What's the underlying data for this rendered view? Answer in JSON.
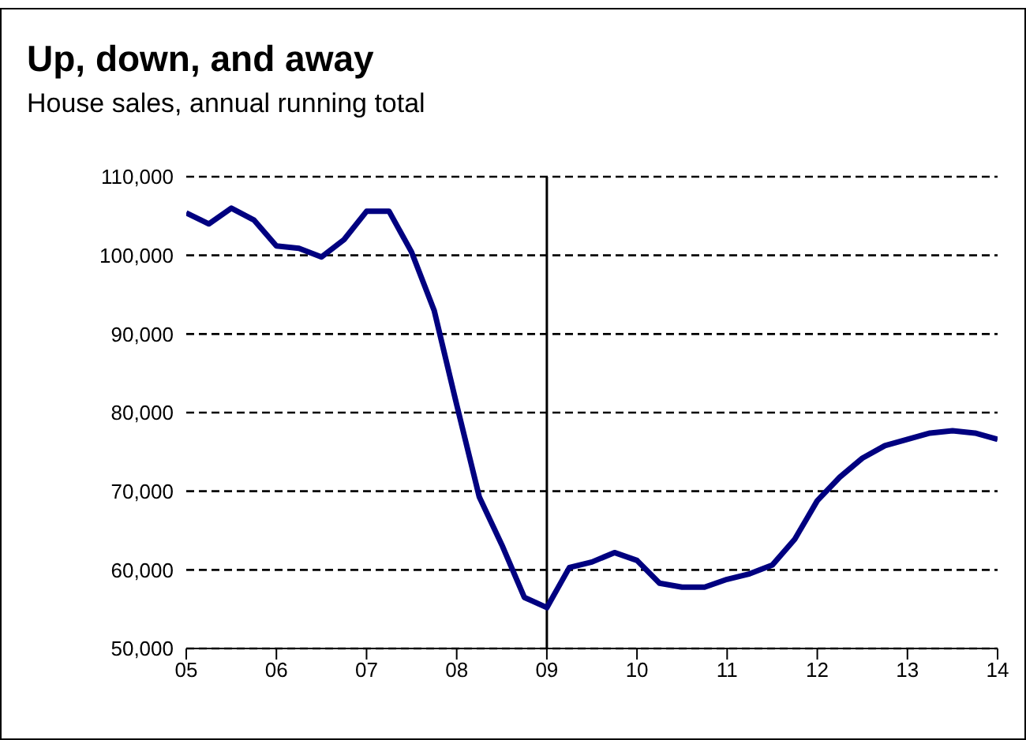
{
  "chart_data": {
    "type": "line",
    "title": "Up, down, and away",
    "subtitle": "House sales, annual running total",
    "x": [
      5,
      5.25,
      5.5,
      5.75,
      6,
      6.25,
      6.5,
      6.75,
      7,
      7.25,
      7.5,
      7.75,
      8,
      8.25,
      8.5,
      8.75,
      9,
      9.25,
      9.5,
      9.75,
      10,
      10.25,
      10.5,
      10.75,
      11,
      11.25,
      11.5,
      11.75,
      12,
      12.25,
      12.5,
      12.75,
      13,
      13.25,
      13.5,
      13.75,
      14
    ],
    "series": [
      {
        "color": "#000080",
        "values": [
          105400,
          104000,
          106000,
          104500,
          101200,
          100900,
          99800,
          102000,
          105600,
          105600,
          100400,
          93000,
          81000,
          69300,
          63200,
          56500,
          55200,
          60300,
          61000,
          62200,
          61200,
          58300,
          57800,
          57800,
          58800,
          59500,
          60600,
          63900,
          68800,
          71800,
          74200,
          75800,
          76600,
          77400,
          77700,
          77400,
          76600
        ]
      }
    ],
    "xlim": [
      5,
      14
    ],
    "xticks": [
      {
        "value": 5,
        "label": "05"
      },
      {
        "value": 6,
        "label": "06"
      },
      {
        "value": 7,
        "label": "07"
      },
      {
        "value": 8,
        "label": "08"
      },
      {
        "value": 9,
        "label": "09"
      },
      {
        "value": 10,
        "label": "10"
      },
      {
        "value": 11,
        "label": "11"
      },
      {
        "value": 12,
        "label": "12"
      },
      {
        "value": 13,
        "label": "13"
      },
      {
        "value": 14,
        "label": "14"
      }
    ],
    "ylim": [
      50000,
      110000
    ],
    "yticks": [
      {
        "value": 50000,
        "label": "50,000"
      },
      {
        "value": 60000,
        "label": "60,000"
      },
      {
        "value": 70000,
        "label": "70,000"
      },
      {
        "value": 80000,
        "label": "80,000"
      },
      {
        "value": 90000,
        "label": "90,000"
      },
      {
        "value": 100000,
        "label": "100,000"
      },
      {
        "value": 110000,
        "label": "110,000"
      }
    ],
    "grid": "y",
    "ref_lines": [
      {
        "axis": "x",
        "value": 9,
        "color": "#000000"
      }
    ]
  }
}
